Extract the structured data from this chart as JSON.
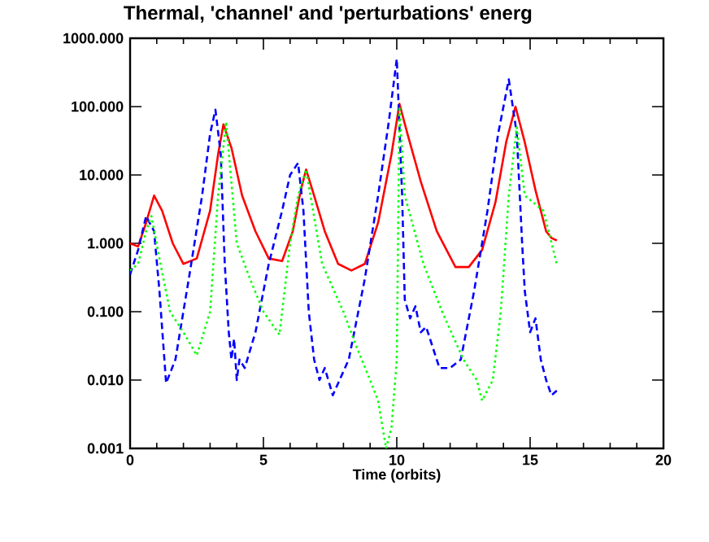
{
  "chart_data": {
    "type": "line",
    "title": "Thermal, 'channel' and 'perturbations' energ",
    "xlabel": "Time (orbits)",
    "log": "y",
    "grid": false,
    "marker": "none",
    "xlim": [
      0,
      20
    ],
    "xticks": [
      0,
      5,
      10,
      15,
      20
    ],
    "ylim": [
      0.001,
      1000
    ],
    "yticks": [
      {
        "value": 1000,
        "label": "1000.000"
      },
      {
        "value": 100,
        "label": "100.000"
      },
      {
        "value": 10,
        "label": "10.000"
      },
      {
        "value": 1,
        "label": "1.000"
      },
      {
        "value": 0.1,
        "label": "0.100"
      },
      {
        "value": 0.01,
        "label": "0.010"
      },
      {
        "value": 0.001,
        "label": "0.001"
      }
    ],
    "series": [
      {
        "color": "#ff0000",
        "line_style": "solid",
        "x": [
          0,
          0.3,
          0.6,
          0.9,
          1.2,
          1.6,
          2.0,
          2.5,
          3.0,
          3.3,
          3.5,
          3.8,
          4.2,
          4.7,
          5.2,
          5.7,
          6.1,
          6.4,
          6.6,
          6.9,
          7.3,
          7.8,
          8.3,
          8.8,
          9.3,
          9.8,
          10.1,
          10.4,
          10.9,
          11.5,
          12.2,
          12.7,
          13.2,
          13.7,
          14.1,
          14.45,
          14.8,
          15.2,
          15.6,
          15.8,
          16.0
        ],
        "values": [
          1.0,
          0.9,
          2,
          5,
          3,
          1,
          0.5,
          0.6,
          3,
          20,
          55,
          25,
          5,
          1.5,
          0.6,
          0.55,
          1.5,
          6,
          12,
          5,
          1.5,
          0.5,
          0.4,
          0.5,
          2,
          20,
          110,
          40,
          8,
          1.5,
          0.45,
          0.45,
          0.8,
          4,
          30,
          100,
          30,
          6,
          1.5,
          1.2,
          1.1
        ]
      },
      {
        "color": "#0000ff",
        "line_style": "dashed",
        "x": [
          0,
          0.3,
          0.6,
          0.9,
          1.1,
          1.35,
          1.7,
          2.2,
          2.7,
          3.0,
          3.2,
          3.4,
          3.55,
          3.7,
          3.8,
          3.9,
          4.0,
          4.1,
          4.3,
          4.7,
          5.2,
          5.7,
          6.0,
          6.3,
          6.5,
          6.7,
          6.9,
          7.1,
          7.3,
          7.6,
          8.2,
          8.8,
          9.3,
          9.7,
          10.0,
          10.2,
          10.3,
          10.5,
          10.7,
          10.9,
          11.1,
          11.6,
          12.0,
          12.4,
          12.9,
          13.4,
          13.8,
          14.2,
          14.5,
          14.7,
          14.8,
          15.0,
          15.2,
          15.4,
          15.6,
          15.8,
          16.0
        ],
        "values": [
          0.35,
          0.8,
          2.5,
          1.5,
          0.2,
          0.009,
          0.02,
          0.3,
          5,
          40,
          90,
          20,
          0.5,
          0.05,
          0.02,
          0.04,
          0.01,
          0.02,
          0.015,
          0.05,
          0.5,
          3,
          10,
          15,
          3,
          0.1,
          0.02,
          0.01,
          0.015,
          0.006,
          0.02,
          0.3,
          5,
          60,
          500,
          5,
          0.15,
          0.08,
          0.12,
          0.05,
          0.06,
          0.015,
          0.015,
          0.02,
          0.2,
          3,
          40,
          250,
          40,
          1,
          0.2,
          0.05,
          0.08,
          0.02,
          0.01,
          0.006,
          0.007
        ]
      },
      {
        "color": "#00ff00",
        "line_style": "dotted",
        "x": [
          0,
          0.3,
          0.6,
          0.8,
          1.1,
          1.5,
          2.0,
          2.5,
          3.0,
          3.3,
          3.6,
          4.0,
          4.5,
          5.0,
          5.6,
          6.0,
          6.3,
          6.6,
          7.2,
          8.0,
          8.5,
          9.0,
          9.3,
          9.6,
          9.8,
          10.0,
          10.1,
          10.3,
          11.0,
          11.7,
          12.5,
          13.0,
          13.2,
          13.6,
          13.9,
          14.2,
          14.5,
          14.8,
          15.5,
          16.0
        ],
        "values": [
          0.4,
          0.5,
          1.5,
          2.5,
          0.6,
          0.1,
          0.05,
          0.023,
          0.1,
          5,
          60,
          1,
          0.3,
          0.1,
          0.046,
          1,
          5,
          12,
          0.5,
          0.1,
          0.03,
          0.01,
          0.005,
          0.001,
          0.002,
          0.02,
          100,
          5,
          0.5,
          0.1,
          0.02,
          0.01,
          0.005,
          0.01,
          0.1,
          5,
          50,
          5,
          3,
          0.5
        ]
      }
    ]
  }
}
